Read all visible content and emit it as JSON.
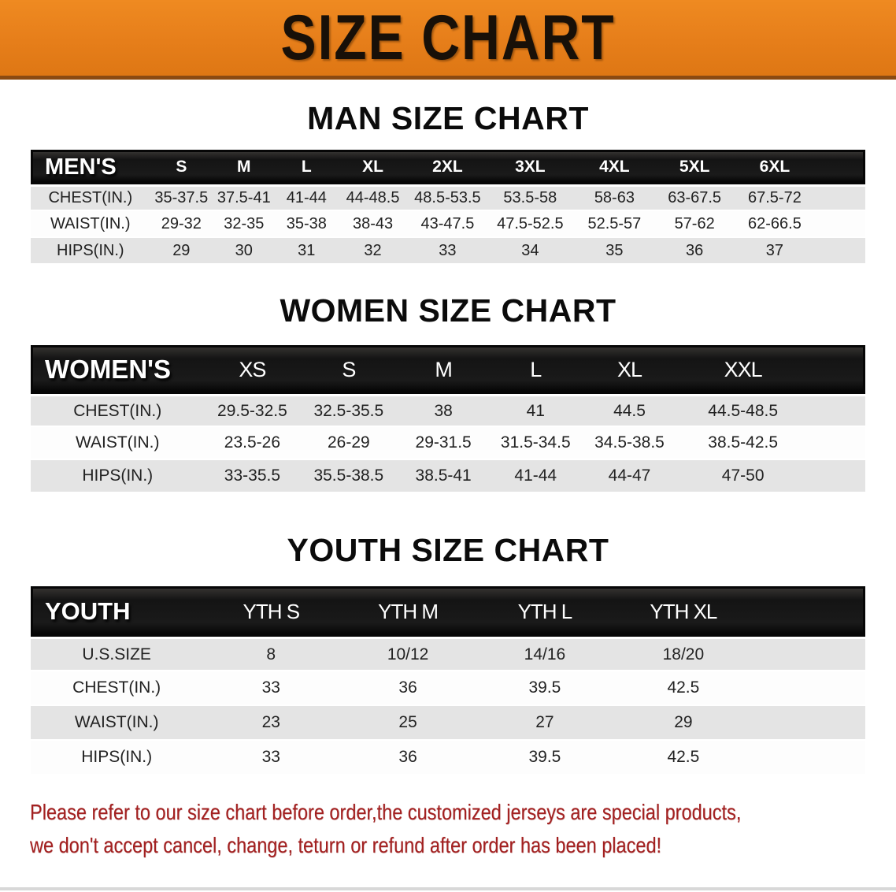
{
  "banner": {
    "title": "SIZE CHART"
  },
  "colors": {
    "banner_bg": "#E67E1A",
    "banner_edge": "#8A4A12",
    "table_header_bg": "#161616",
    "table_header_text": "#FFFFFF",
    "row_shaded": "#E4E4E4",
    "row_plain": "#FDFDFD",
    "body_text": "#222222",
    "heading_text": "#0B0B0B",
    "disclaimer_text": "#A32020"
  },
  "chart_data": [
    {
      "type": "table",
      "title": "MAN SIZE CHART",
      "corner_label": "MEN'S",
      "columns": [
        "S",
        "M",
        "L",
        "XL",
        "2XL",
        "3XL",
        "4XL",
        "5XL",
        "6XL"
      ],
      "rows": [
        {
          "label": "CHEST(IN.)",
          "values": [
            "35-37.5",
            "37.5-41",
            "41-44",
            "44-48.5",
            "48.5-53.5",
            "53.5-58",
            "58-63",
            "63-67.5",
            "67.5-72"
          ]
        },
        {
          "label": "WAIST(IN.)",
          "values": [
            "29-32",
            "32-35",
            "35-38",
            "38-43",
            "43-47.5",
            "47.5-52.5",
            "52.5-57",
            "57-62",
            "62-66.5"
          ]
        },
        {
          "label": "HIPS(IN.)",
          "values": [
            "29",
            "30",
            "31",
            "32",
            "33",
            "34",
            "35",
            "36",
            "37"
          ]
        }
      ]
    },
    {
      "type": "table",
      "title": "WOMEN SIZE CHART",
      "corner_label": "WOMEN'S",
      "columns": [
        "XS",
        "S",
        "M",
        "L",
        "XL",
        "XXL"
      ],
      "rows": [
        {
          "label": "CHEST(IN.)",
          "values": [
            "29.5-32.5",
            "32.5-35.5",
            "38",
            "41",
            "44.5",
            "44.5-48.5"
          ]
        },
        {
          "label": "WAIST(IN.)",
          "values": [
            "23.5-26",
            "26-29",
            "29-31.5",
            "31.5-34.5",
            "34.5-38.5",
            "38.5-42.5"
          ]
        },
        {
          "label": "HIPS(IN.)",
          "values": [
            "33-35.5",
            "35.5-38.5",
            "38.5-41",
            "41-44",
            "44-47",
            "47-50"
          ]
        }
      ]
    },
    {
      "type": "table",
      "title": "YOUTH SIZE CHART",
      "corner_label": "YOUTH",
      "columns": [
        "YTH S",
        "YTH M",
        "YTH L",
        "YTH XL"
      ],
      "rows": [
        {
          "label": "U.S.SIZE",
          "values": [
            "8",
            "10/12",
            "14/16",
            "18/20"
          ]
        },
        {
          "label": "CHEST(IN.)",
          "values": [
            "33",
            "36",
            "39.5",
            "42.5"
          ]
        },
        {
          "label": "WAIST(IN.)",
          "values": [
            "23",
            "25",
            "27",
            "29"
          ]
        },
        {
          "label": "HIPS(IN.)",
          "values": [
            "33",
            "36",
            "39.5",
            "42.5"
          ]
        }
      ]
    }
  ],
  "disclaimer": {
    "line1": "Please refer to our size chart before order,the customized jerseys are special products,",
    "line2": "we don't accept cancel, change, teturn or refund after order has been placed!"
  }
}
